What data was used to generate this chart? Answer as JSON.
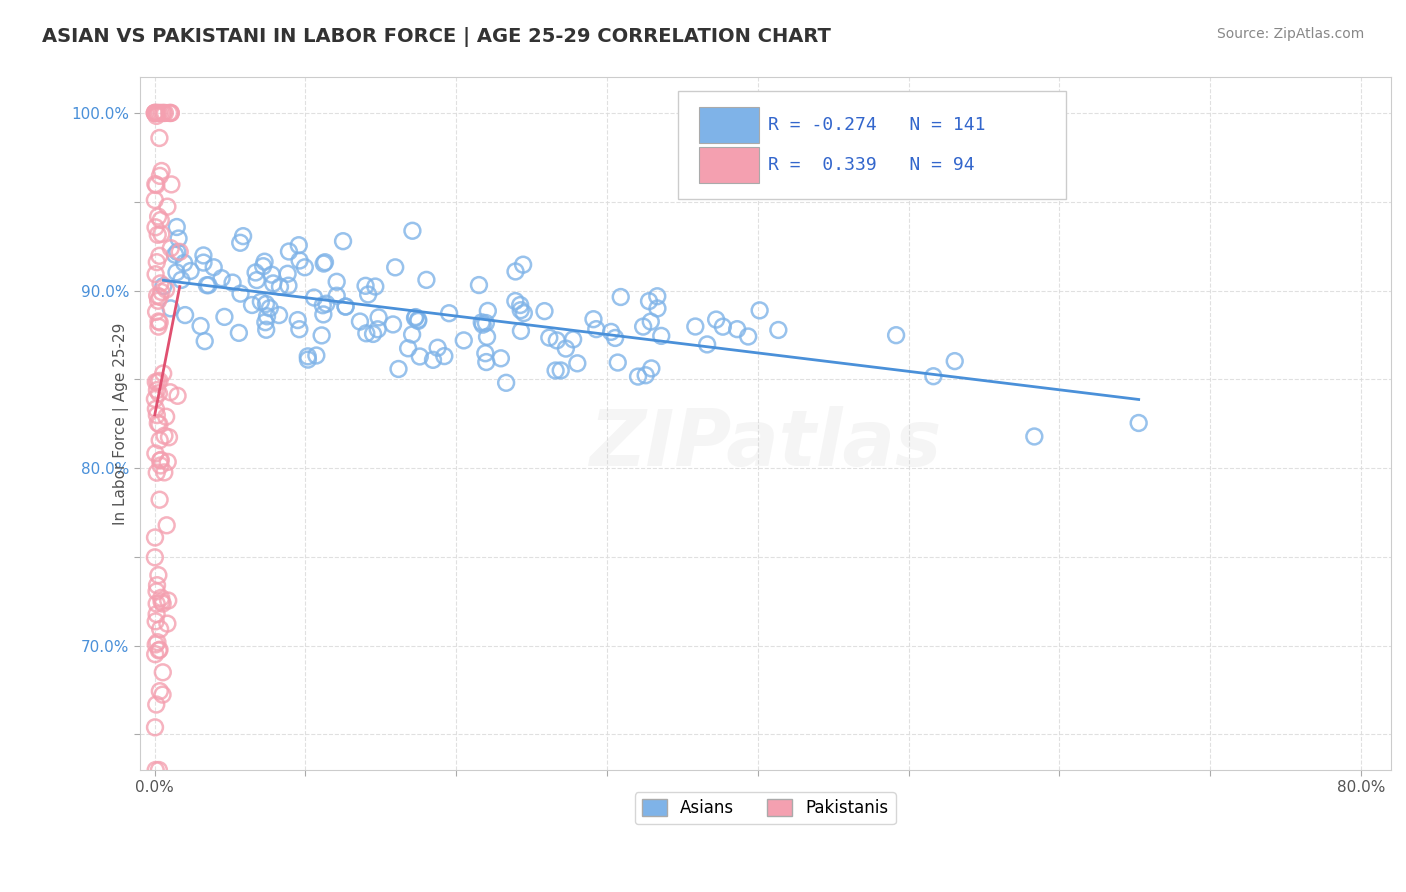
{
  "title": "ASIAN VS PAKISTANI IN LABOR FORCE | AGE 25-29 CORRELATION CHART",
  "source_text": "Source: ZipAtlas.com",
  "ylabel": "In Labor Force | Age 25-29",
  "xlim": [
    -0.01,
    0.82
  ],
  "ylim": [
    0.63,
    1.02
  ],
  "asian_color": "#7fb3e8",
  "pakistani_color": "#f4a0b0",
  "asian_trend_color": "#4a90d9",
  "pakistani_trend_color": "#e05070",
  "R_asian": -0.274,
  "N_asian": 141,
  "R_pakistani": 0.339,
  "N_pakistani": 94,
  "legend_label_asian": "Asians",
  "legend_label_pakistani": "Pakistanis",
  "background_color": "#ffffff",
  "grid_color": "#dddddd",
  "title_color": "#333333",
  "axis_label_color": "#555555",
  "watermark_text": "ZIPatlas",
  "legend_text_color": "#3366cc",
  "source_color": "#888888",
  "y_tick_color": "#4a90d9"
}
